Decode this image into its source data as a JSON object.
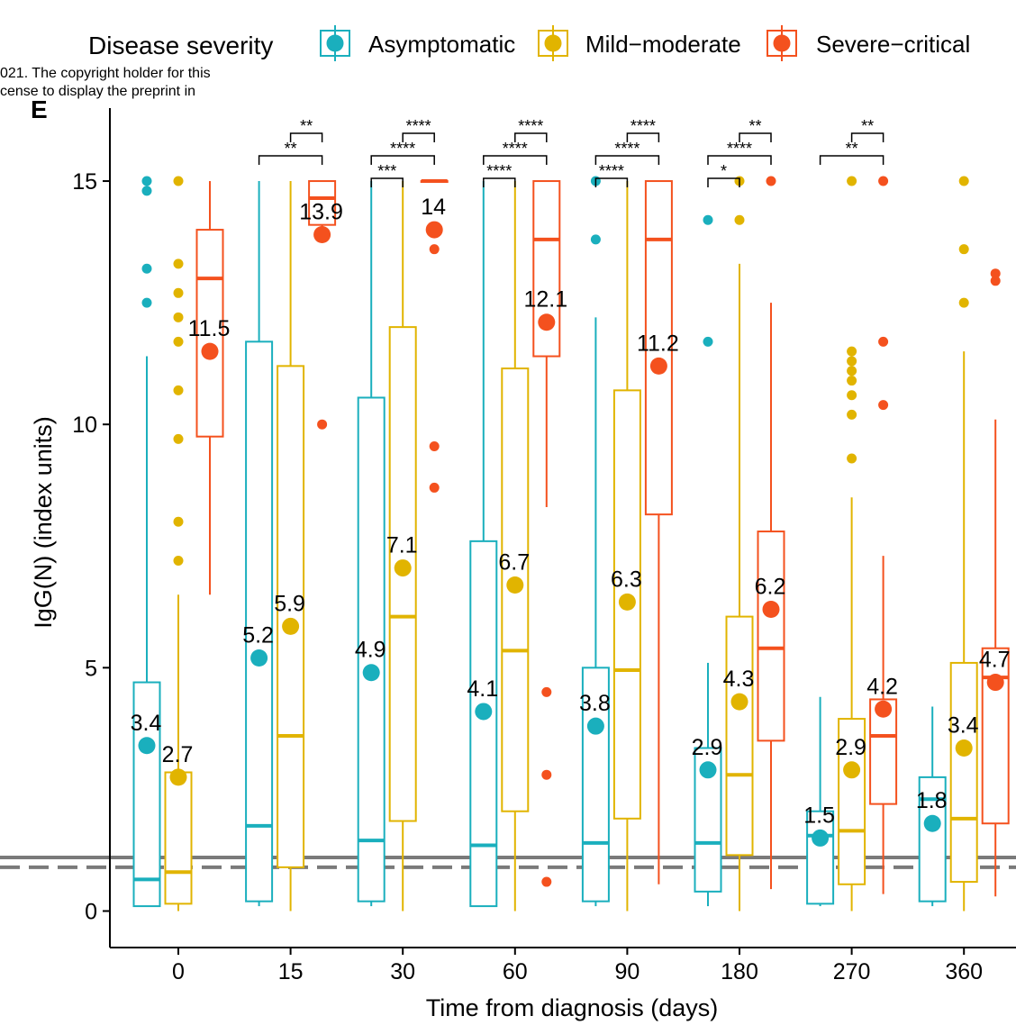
{
  "panel_letter": "E",
  "watermark_lines": [
    "021. The copyright holder for this",
    "cense to display the preprint in"
  ],
  "colors": {
    "Asymptomatic": "#1AAFBD",
    "Mild-moderate": "#E1B400",
    "Severe-critical": "#F4511E",
    "reference_line": "#7a7a7a"
  },
  "chart_data": {
    "type": "box",
    "xlabel": "Time from diagnosis (days)",
    "ylabel": "IgG(N) (index units)",
    "categories": [
      "0",
      "15",
      "30",
      "60",
      "90",
      "180",
      "270",
      "360"
    ],
    "ylim": [
      -0.75,
      16.5
    ],
    "yticks": [
      0,
      5,
      10,
      15
    ],
    "grid": false,
    "legend": {
      "title": "Disease severity",
      "position": "top",
      "entries": [
        "Asymptomatic",
        "Mild−moderate",
        "Severe−critical"
      ]
    },
    "reference_lines": [
      {
        "y": 1.1,
        "style": "solid"
      },
      {
        "y": 0.9,
        "style": "dashed"
      }
    ],
    "series": [
      {
        "name": "Asymptomatic",
        "mean_labels": [
          "3.4",
          "5.2",
          "4.9",
          "4.1",
          "3.8",
          "2.9",
          "1.5",
          "1.8"
        ],
        "boxes": [
          {
            "whisker_low": 0.1,
            "q1": 0.1,
            "median": 0.65,
            "q3": 4.7,
            "whisker_high": 11.4,
            "mean": 3.4,
            "outliers": [
              12.5,
              13.2,
              14.8,
              15
            ]
          },
          {
            "whisker_low": 0.1,
            "q1": 0.2,
            "median": 1.75,
            "q3": 11.7,
            "whisker_high": 15,
            "mean": 5.2,
            "outliers": []
          },
          {
            "whisker_low": 0.1,
            "q1": 0.2,
            "median": 1.45,
            "q3": 10.55,
            "whisker_high": 15,
            "mean": 4.9,
            "outliers": []
          },
          {
            "whisker_low": 0.1,
            "q1": 0.1,
            "median": 1.35,
            "q3": 7.6,
            "whisker_high": 15,
            "mean": 4.1,
            "outliers": []
          },
          {
            "whisker_low": 0.1,
            "q1": 0.2,
            "median": 1.4,
            "q3": 5.0,
            "whisker_high": 12.2,
            "mean": 3.8,
            "outliers": [
              13.8,
              15
            ]
          },
          {
            "whisker_low": 0.1,
            "q1": 0.4,
            "median": 1.4,
            "q3": 3.35,
            "whisker_high": 5.1,
            "mean": 2.9,
            "outliers": [
              11.7,
              14.2
            ]
          },
          {
            "whisker_low": 0.1,
            "q1": 0.15,
            "median": 1.55,
            "q3": 2.05,
            "whisker_high": 4.4,
            "mean": 1.5,
            "outliers": []
          },
          {
            "whisker_low": 0.1,
            "q1": 0.2,
            "median": 2.3,
            "q3": 2.75,
            "whisker_high": 4.2,
            "mean": 1.8,
            "outliers": []
          }
        ]
      },
      {
        "name": "Mild-moderate",
        "mean_labels": [
          "2.7",
          "5.9",
          "7.1",
          "6.7",
          "6.3",
          "4.3",
          "2.9",
          "3.4"
        ],
        "boxes": [
          {
            "whisker_low": 0.0,
            "q1": 0.15,
            "median": 0.8,
            "q3": 2.85,
            "whisker_high": 6.5,
            "mean": 2.75,
            "outliers": [
              7.2,
              8.0,
              9.7,
              10.7,
              11.7,
              12.2,
              12.7,
              13.3,
              15
            ]
          },
          {
            "whisker_low": 0.0,
            "q1": 0.9,
            "median": 3.6,
            "q3": 11.2,
            "whisker_high": 15,
            "mean": 5.85,
            "outliers": []
          },
          {
            "whisker_low": 0.0,
            "q1": 1.85,
            "median": 6.05,
            "q3": 12.0,
            "whisker_high": 15,
            "mean": 7.05,
            "outliers": []
          },
          {
            "whisker_low": 0.0,
            "q1": 2.05,
            "median": 5.35,
            "q3": 11.15,
            "whisker_high": 15,
            "mean": 6.7,
            "outliers": []
          },
          {
            "whisker_low": 0.0,
            "q1": 1.9,
            "median": 4.95,
            "q3": 10.7,
            "whisker_high": 15,
            "mean": 6.35,
            "outliers": []
          },
          {
            "whisker_low": 0.0,
            "q1": 1.15,
            "median": 2.8,
            "q3": 6.05,
            "whisker_high": 13.3,
            "mean": 4.3,
            "outliers": [
              14.2,
              15
            ]
          },
          {
            "whisker_low": 0.0,
            "q1": 0.55,
            "median": 1.65,
            "q3": 3.95,
            "whisker_high": 8.5,
            "mean": 2.9,
            "outliers": [
              9.3,
              10.2,
              10.6,
              10.9,
              11.1,
              11.3,
              11.5,
              15
            ]
          },
          {
            "whisker_low": 0.0,
            "q1": 0.6,
            "median": 1.9,
            "q3": 5.1,
            "whisker_high": 11.5,
            "mean": 3.35,
            "outliers": [
              12.5,
              13.6,
              15
            ]
          }
        ]
      },
      {
        "name": "Severe-critical",
        "mean_labels": [
          "11.5",
          "13.9",
          "14",
          "12.1",
          "11.2",
          "6.2",
          "4.2",
          "4.7"
        ],
        "boxes": [
          {
            "whisker_low": 6.5,
            "q1": 9.75,
            "median": 13.0,
            "q3": 14.0,
            "whisker_high": 15,
            "mean": 11.5,
            "outliers": []
          },
          {
            "whisker_low": 13.9,
            "q1": 14.1,
            "median": 14.65,
            "q3": 15.0,
            "whisker_high": 15,
            "mean": 13.9,
            "outliers": [
              10.0
            ]
          },
          {
            "whisker_low": 15,
            "q1": 15,
            "median": 15,
            "q3": 15,
            "whisker_high": 15,
            "mean": 14.0,
            "outliers": [
              8.7,
              9.55,
              13.6
            ]
          },
          {
            "whisker_low": 8.3,
            "q1": 11.4,
            "median": 13.8,
            "q3": 15.0,
            "whisker_high": 15,
            "mean": 12.1,
            "outliers": [
              0.6,
              2.8,
              4.5
            ]
          },
          {
            "whisker_low": 0.55,
            "q1": 8.15,
            "median": 13.8,
            "q3": 15.0,
            "whisker_high": 15,
            "mean": 11.2,
            "outliers": []
          },
          {
            "whisker_low": 0.45,
            "q1": 3.5,
            "median": 5.4,
            "q3": 7.8,
            "whisker_high": 12.5,
            "mean": 6.2,
            "outliers": [
              15
            ]
          },
          {
            "whisker_low": 0.35,
            "q1": 2.2,
            "median": 3.6,
            "q3": 4.35,
            "whisker_high": 7.3,
            "mean": 4.15,
            "outliers": [
              10.4,
              11.7,
              15
            ]
          },
          {
            "whisker_low": 0.3,
            "q1": 1.8,
            "median": 4.8,
            "q3": 5.4,
            "whisker_high": 10.1,
            "mean": 4.7,
            "outliers": [
              12.95,
              13.1
            ]
          }
        ]
      }
    ],
    "significance": [
      {
        "category": "15",
        "pair": [
          "Mild-moderate",
          "Severe-critical"
        ],
        "label": "**",
        "level": 0
      },
      {
        "category": "15",
        "pair": [
          "Asymptomatic",
          "Severe-critical"
        ],
        "label": "**",
        "level": 1
      },
      {
        "category": "30",
        "pair": [
          "Mild-moderate",
          "Severe-critical"
        ],
        "label": "****",
        "level": 0
      },
      {
        "category": "30",
        "pair": [
          "Asymptomatic",
          "Severe-critical"
        ],
        "label": "****",
        "level": 1
      },
      {
        "category": "30",
        "pair": [
          "Asymptomatic",
          "Mild-moderate"
        ],
        "label": "***",
        "level": 2
      },
      {
        "category": "60",
        "pair": [
          "Mild-moderate",
          "Severe-critical"
        ],
        "label": "****",
        "level": 0
      },
      {
        "category": "60",
        "pair": [
          "Asymptomatic",
          "Severe-critical"
        ],
        "label": "****",
        "level": 1
      },
      {
        "category": "60",
        "pair": [
          "Asymptomatic",
          "Mild-moderate"
        ],
        "label": "****",
        "level": 2
      },
      {
        "category": "90",
        "pair": [
          "Mild-moderate",
          "Severe-critical"
        ],
        "label": "****",
        "level": 0
      },
      {
        "category": "90",
        "pair": [
          "Asymptomatic",
          "Severe-critical"
        ],
        "label": "****",
        "level": 1
      },
      {
        "category": "90",
        "pair": [
          "Asymptomatic",
          "Mild-moderate"
        ],
        "label": "****",
        "level": 2
      },
      {
        "category": "180",
        "pair": [
          "Mild-moderate",
          "Severe-critical"
        ],
        "label": "**",
        "level": 0
      },
      {
        "category": "180",
        "pair": [
          "Asymptomatic",
          "Severe-critical"
        ],
        "label": "****",
        "level": 1
      },
      {
        "category": "180",
        "pair": [
          "Asymptomatic",
          "Mild-moderate"
        ],
        "label": "*",
        "level": 2
      },
      {
        "category": "270",
        "pair": [
          "Mild-moderate",
          "Severe-critical"
        ],
        "label": "**",
        "level": 0
      },
      {
        "category": "270",
        "pair": [
          "Asymptomatic",
          "Severe-critical"
        ],
        "label": "**",
        "level": 1
      }
    ]
  }
}
